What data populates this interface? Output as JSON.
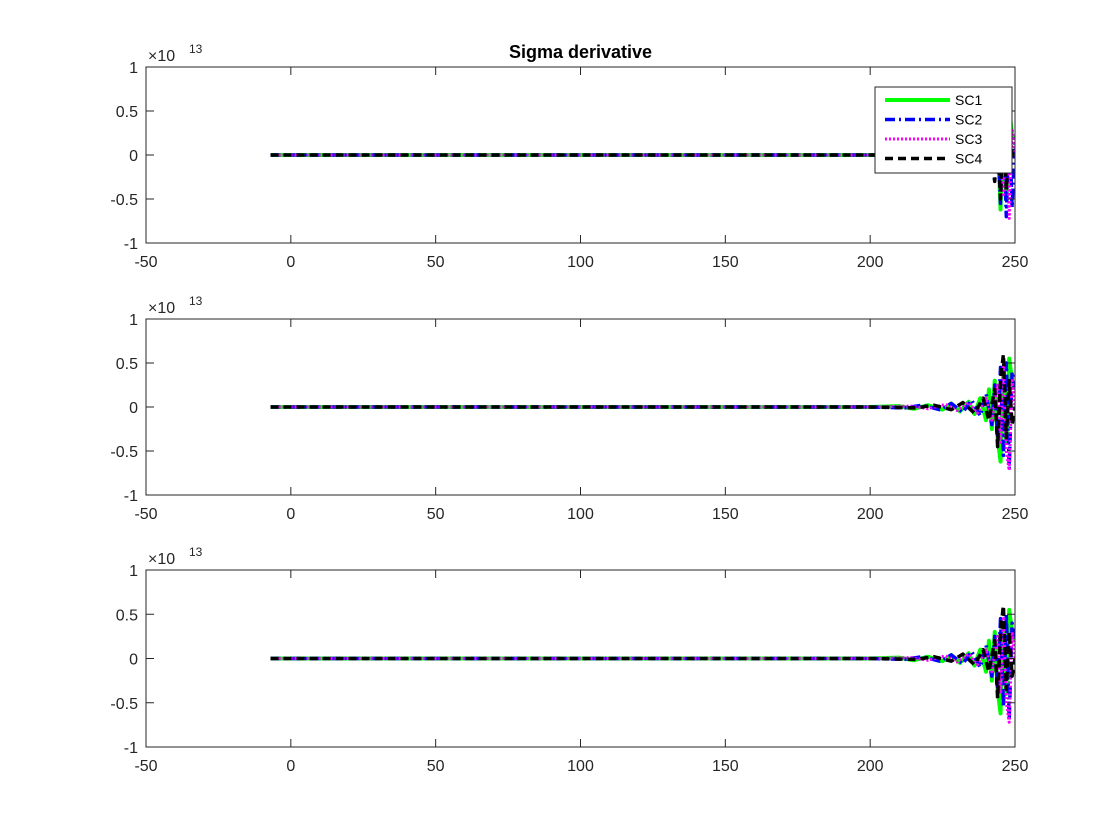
{
  "chart_data": [
    {
      "type": "line",
      "title": "Sigma derivative",
      "xlim": [
        -50,
        250
      ],
      "ylim": [
        -1,
        1
      ],
      "y_multiplier_label": {
        "base": "×10",
        "exponent": "13"
      },
      "xticks": [
        -50,
        0,
        50,
        100,
        150,
        200,
        250
      ],
      "xtick_labels": [
        "-50",
        "0",
        "50",
        "100",
        "150",
        "200",
        "250"
      ],
      "yticks": [
        -1,
        -0.5,
        0,
        0.5,
        1
      ],
      "ytick_labels": [
        "-1",
        "-0.5",
        "0",
        "0.5",
        "1"
      ],
      "legend": {
        "placement": "top-right",
        "entries": [
          "SC1",
          "SC2",
          "SC3",
          "SC4"
        ]
      },
      "series": [
        {
          "name": "SC1",
          "color": "#00ff00",
          "style": "solid",
          "x": [
            -7,
            200,
            238,
            240,
            242,
            244,
            245,
            246,
            247,
            248,
            249,
            250
          ],
          "y": [
            0,
            0,
            0,
            0.05,
            -0.15,
            0.3,
            -0.62,
            0.45,
            -0.5,
            0.55,
            0.2,
            0.2
          ]
        },
        {
          "name": "SC2",
          "color": "#0000ff",
          "style": "dashdot",
          "x": [
            -7,
            200,
            240,
            242,
            244,
            245,
            246,
            247,
            248,
            249,
            250
          ],
          "y": [
            0,
            0,
            0,
            -0.1,
            0.25,
            -0.55,
            0.5,
            -0.7,
            0.4,
            -0.6,
            0.2
          ]
        },
        {
          "name": "SC3",
          "color": "#ff00ff",
          "style": "dotted",
          "x": [
            -7,
            200,
            240,
            242,
            244,
            245,
            246,
            247,
            248,
            249,
            250
          ],
          "y": [
            0,
            0,
            0,
            0.08,
            -0.2,
            0.35,
            -0.45,
            0.55,
            -0.72,
            0.3,
            0
          ]
        },
        {
          "name": "SC4",
          "color": "#000000",
          "style": "dashed",
          "x": [
            -7,
            200,
            240,
            242,
            243,
            244,
            245,
            246,
            247,
            248,
            249,
            250
          ],
          "y": [
            0,
            0,
            0,
            -0.05,
            -0.3,
            0.2,
            -0.5,
            0.6,
            -0.4,
            0.3,
            0,
            0
          ]
        }
      ]
    },
    {
      "type": "line",
      "title": "",
      "xlim": [
        -50,
        250
      ],
      "ylim": [
        -1,
        1
      ],
      "y_multiplier_label": {
        "base": "×10",
        "exponent": "13"
      },
      "xticks": [
        -50,
        0,
        50,
        100,
        150,
        200,
        250
      ],
      "xtick_labels": [
        "-50",
        "0",
        "50",
        "100",
        "150",
        "200",
        "250"
      ],
      "yticks": [
        -1,
        -0.5,
        0,
        0.5,
        1
      ],
      "ytick_labels": [
        "-1",
        "-0.5",
        "0",
        "0.5",
        "1"
      ],
      "series": [
        {
          "name": "SC1",
          "color": "#00ff00",
          "style": "solid",
          "x": [
            -7,
            200,
            210,
            215,
            220,
            225,
            228,
            231,
            234,
            236,
            238,
            240,
            241,
            242,
            243,
            244,
            245,
            246,
            247,
            248,
            249,
            250
          ],
          "y": [
            0,
            0,
            0.01,
            -0.02,
            0.02,
            -0.03,
            0.04,
            -0.05,
            0.06,
            -0.08,
            0.1,
            -0.15,
            0.2,
            -0.25,
            0.3,
            -0.35,
            -0.62,
            0.4,
            -0.4,
            0.55,
            0.3,
            0.2
          ]
        },
        {
          "name": "SC2",
          "color": "#0000ff",
          "style": "dashdot",
          "x": [
            -7,
            200,
            212,
            218,
            224,
            228,
            232,
            235,
            238,
            240,
            242,
            243,
            244,
            245,
            246,
            247,
            248,
            249,
            250
          ],
          "y": [
            0,
            0,
            -0.01,
            0.02,
            -0.03,
            0.04,
            -0.06,
            0.08,
            -0.1,
            0.15,
            -0.2,
            0.25,
            -0.35,
            0.45,
            -0.55,
            0.5,
            -0.7,
            0.4,
            0.2
          ]
        },
        {
          "name": "SC3",
          "color": "#ff00ff",
          "style": "dotted",
          "x": [
            -7,
            200,
            214,
            220,
            226,
            230,
            234,
            237,
            240,
            242,
            244,
            245,
            246,
            247,
            248,
            249,
            250
          ],
          "y": [
            0,
            0,
            0.01,
            -0.02,
            0.03,
            -0.04,
            0.05,
            -0.07,
            0.1,
            -0.15,
            0.25,
            -0.4,
            0.45,
            -0.5,
            -0.72,
            0.3,
            0
          ]
        },
        {
          "name": "SC4",
          "color": "#000000",
          "style": "dashed",
          "x": [
            -7,
            200,
            216,
            222,
            228,
            232,
            236,
            239,
            241,
            243,
            244,
            245,
            246,
            247,
            248,
            249,
            250
          ],
          "y": [
            0,
            0,
            -0.01,
            0.02,
            -0.03,
            0.05,
            -0.07,
            0.1,
            -0.15,
            0.2,
            -0.45,
            0.3,
            0.6,
            -0.35,
            0.3,
            -0.2,
            0
          ]
        }
      ]
    },
    {
      "type": "line",
      "title": "",
      "xlim": [
        -50,
        250
      ],
      "ylim": [
        -1,
        1
      ],
      "y_multiplier_label": {
        "base": "×10",
        "exponent": "13"
      },
      "xticks": [
        -50,
        0,
        50,
        100,
        150,
        200,
        250
      ],
      "xtick_labels": [
        "-50",
        "0",
        "50",
        "100",
        "150",
        "200",
        "250"
      ],
      "yticks": [
        -1,
        -0.5,
        0,
        0.5,
        1
      ],
      "ytick_labels": [
        "-1",
        "-0.5",
        "0",
        "0.5",
        "1"
      ],
      "series": [
        {
          "name": "SC1",
          "color": "#00ff00",
          "style": "solid",
          "x": [
            -7,
            200,
            210,
            215,
            220,
            225,
            228,
            231,
            234,
            236,
            238,
            240,
            241,
            242,
            243,
            244,
            245,
            246,
            247,
            248,
            249,
            250
          ],
          "y": [
            0,
            0,
            0.01,
            -0.02,
            0.02,
            -0.03,
            0.04,
            -0.05,
            0.06,
            -0.08,
            0.1,
            -0.15,
            0.2,
            -0.25,
            0.3,
            -0.35,
            -0.62,
            0.4,
            -0.4,
            0.55,
            0.3,
            0.2
          ]
        },
        {
          "name": "SC2",
          "color": "#0000ff",
          "style": "dashdot",
          "x": [
            -7,
            200,
            212,
            218,
            224,
            228,
            232,
            235,
            238,
            240,
            242,
            243,
            244,
            245,
            246,
            247,
            248,
            249,
            250
          ],
          "y": [
            0,
            0,
            -0.01,
            0.02,
            -0.03,
            0.04,
            -0.06,
            0.08,
            -0.1,
            0.15,
            -0.2,
            0.25,
            -0.35,
            0.45,
            -0.55,
            0.5,
            -0.7,
            0.4,
            0.2
          ]
        },
        {
          "name": "SC3",
          "color": "#ff00ff",
          "style": "dotted",
          "x": [
            -7,
            200,
            214,
            220,
            226,
            230,
            234,
            237,
            240,
            242,
            244,
            245,
            246,
            247,
            248,
            249,
            250
          ],
          "y": [
            0,
            0,
            0.01,
            -0.02,
            0.03,
            -0.04,
            0.05,
            -0.07,
            0.1,
            -0.15,
            0.25,
            -0.4,
            0.45,
            -0.5,
            -0.72,
            0.3,
            0
          ]
        },
        {
          "name": "SC4",
          "color": "#000000",
          "style": "dashed",
          "x": [
            -7,
            200,
            216,
            222,
            228,
            232,
            236,
            239,
            241,
            243,
            244,
            245,
            246,
            247,
            248,
            249,
            250
          ],
          "y": [
            0,
            0,
            -0.01,
            0.02,
            -0.03,
            0.05,
            -0.07,
            0.1,
            -0.15,
            0.2,
            -0.45,
            0.3,
            0.6,
            -0.35,
            0.3,
            -0.2,
            0
          ]
        }
      ]
    }
  ]
}
